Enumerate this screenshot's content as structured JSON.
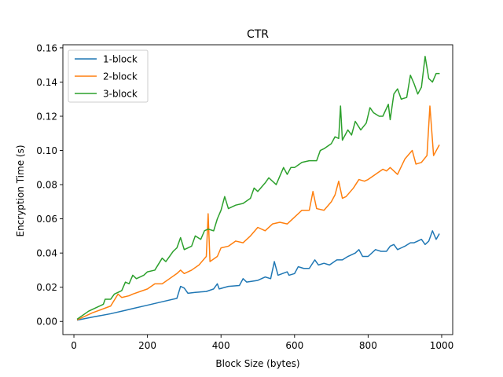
{
  "chart_data": {
    "type": "line",
    "title": "CTR",
    "xlabel": "Block Size (bytes)",
    "ylabel": "Encryption Time (s)",
    "xlim": [
      -30,
      1030
    ],
    "ylim": [
      -0.0077,
      0.1618
    ],
    "xticks": [
      0,
      200,
      400,
      600,
      800,
      1000
    ],
    "xtick_labels": [
      "0",
      "200",
      "400",
      "600",
      "800",
      "1000"
    ],
    "yticks": [
      0,
      0.02,
      0.04,
      0.06,
      0.08,
      0.1,
      0.12,
      0.14,
      0.16
    ],
    "ytick_labels": [
      "0.00",
      "0.02",
      "0.04",
      "0.06",
      "0.08",
      "0.10",
      "0.12",
      "0.14",
      "0.16"
    ],
    "grid": false,
    "legend_position": "top-left",
    "series": [
      {
        "name": "1-block",
        "color": "#1f77b4",
        "points": [
          [
            10,
            0.0008
          ],
          [
            50,
            0.0025
          ],
          [
            100,
            0.0045
          ],
          [
            140,
            0.0065
          ],
          [
            160,
            0.0075
          ],
          [
            200,
            0.0095
          ],
          [
            240,
            0.0115
          ],
          [
            280,
            0.0135
          ],
          [
            290,
            0.0205
          ],
          [
            300,
            0.0195
          ],
          [
            310,
            0.0165
          ],
          [
            330,
            0.017
          ],
          [
            360,
            0.0175
          ],
          [
            380,
            0.019
          ],
          [
            390,
            0.022
          ],
          [
            395,
            0.019
          ],
          [
            420,
            0.0205
          ],
          [
            450,
            0.021
          ],
          [
            460,
            0.025
          ],
          [
            470,
            0.023
          ],
          [
            500,
            0.024
          ],
          [
            520,
            0.026
          ],
          [
            535,
            0.025
          ],
          [
            545,
            0.035
          ],
          [
            555,
            0.027
          ],
          [
            580,
            0.029
          ],
          [
            585,
            0.027
          ],
          [
            600,
            0.028
          ],
          [
            610,
            0.032
          ],
          [
            625,
            0.031
          ],
          [
            640,
            0.031
          ],
          [
            655,
            0.036
          ],
          [
            665,
            0.033
          ],
          [
            680,
            0.034
          ],
          [
            695,
            0.033
          ],
          [
            715,
            0.036
          ],
          [
            730,
            0.036
          ],
          [
            745,
            0.038
          ],
          [
            765,
            0.04
          ],
          [
            775,
            0.042
          ],
          [
            785,
            0.038
          ],
          [
            800,
            0.038
          ],
          [
            820,
            0.042
          ],
          [
            835,
            0.041
          ],
          [
            850,
            0.041
          ],
          [
            860,
            0.044
          ],
          [
            870,
            0.045
          ],
          [
            880,
            0.042
          ],
          [
            890,
            0.043
          ],
          [
            900,
            0.044
          ],
          [
            915,
            0.046
          ],
          [
            925,
            0.046
          ],
          [
            935,
            0.047
          ],
          [
            945,
            0.048
          ],
          [
            955,
            0.045
          ],
          [
            965,
            0.047
          ],
          [
            975,
            0.053
          ],
          [
            985,
            0.048
          ],
          [
            993,
            0.051
          ]
        ]
      },
      {
        "name": "2-block",
        "color": "#ff7f0e",
        "points": [
          [
            10,
            0.001
          ],
          [
            50,
            0.005
          ],
          [
            100,
            0.009
          ],
          [
            120,
            0.016
          ],
          [
            130,
            0.014
          ],
          [
            150,
            0.015
          ],
          [
            160,
            0.016
          ],
          [
            200,
            0.019
          ],
          [
            220,
            0.022
          ],
          [
            240,
            0.022
          ],
          [
            260,
            0.025
          ],
          [
            280,
            0.028
          ],
          [
            290,
            0.03
          ],
          [
            300,
            0.028
          ],
          [
            320,
            0.03
          ],
          [
            340,
            0.033
          ],
          [
            360,
            0.038
          ],
          [
            365,
            0.063
          ],
          [
            370,
            0.035
          ],
          [
            390,
            0.038
          ],
          [
            400,
            0.043
          ],
          [
            420,
            0.044
          ],
          [
            440,
            0.047
          ],
          [
            460,
            0.046
          ],
          [
            480,
            0.05
          ],
          [
            500,
            0.055
          ],
          [
            520,
            0.053
          ],
          [
            540,
            0.057
          ],
          [
            560,
            0.058
          ],
          [
            580,
            0.057
          ],
          [
            600,
            0.061
          ],
          [
            620,
            0.065
          ],
          [
            640,
            0.065
          ],
          [
            650,
            0.076
          ],
          [
            660,
            0.066
          ],
          [
            680,
            0.065
          ],
          [
            700,
            0.07
          ],
          [
            710,
            0.074
          ],
          [
            720,
            0.082
          ],
          [
            730,
            0.072
          ],
          [
            740,
            0.073
          ],
          [
            760,
            0.078
          ],
          [
            775,
            0.083
          ],
          [
            790,
            0.082
          ],
          [
            800,
            0.083
          ],
          [
            820,
            0.086
          ],
          [
            840,
            0.089
          ],
          [
            850,
            0.088
          ],
          [
            860,
            0.09
          ],
          [
            880,
            0.086
          ],
          [
            900,
            0.095
          ],
          [
            920,
            0.1
          ],
          [
            930,
            0.092
          ],
          [
            945,
            0.093
          ],
          [
            960,
            0.097
          ],
          [
            968,
            0.126
          ],
          [
            978,
            0.097
          ],
          [
            993,
            0.103
          ]
        ]
      },
      {
        "name": "3-block",
        "color": "#2ca02c",
        "points": [
          [
            10,
            0.0015
          ],
          [
            40,
            0.006
          ],
          [
            60,
            0.008
          ],
          [
            80,
            0.01
          ],
          [
            85,
            0.013
          ],
          [
            100,
            0.013
          ],
          [
            110,
            0.016
          ],
          [
            130,
            0.018
          ],
          [
            140,
            0.023
          ],
          [
            150,
            0.022
          ],
          [
            160,
            0.027
          ],
          [
            170,
            0.025
          ],
          [
            190,
            0.027
          ],
          [
            200,
            0.029
          ],
          [
            220,
            0.03
          ],
          [
            240,
            0.037
          ],
          [
            250,
            0.035
          ],
          [
            270,
            0.041
          ],
          [
            280,
            0.043
          ],
          [
            290,
            0.049
          ],
          [
            300,
            0.042
          ],
          [
            320,
            0.044
          ],
          [
            330,
            0.05
          ],
          [
            345,
            0.048
          ],
          [
            355,
            0.053
          ],
          [
            365,
            0.054
          ],
          [
            380,
            0.053
          ],
          [
            390,
            0.06
          ],
          [
            400,
            0.065
          ],
          [
            410,
            0.073
          ],
          [
            420,
            0.066
          ],
          [
            440,
            0.068
          ],
          [
            460,
            0.069
          ],
          [
            480,
            0.072
          ],
          [
            490,
            0.078
          ],
          [
            500,
            0.076
          ],
          [
            520,
            0.081
          ],
          [
            530,
            0.084
          ],
          [
            550,
            0.08
          ],
          [
            560,
            0.085
          ],
          [
            570,
            0.09
          ],
          [
            580,
            0.086
          ],
          [
            590,
            0.09
          ],
          [
            600,
            0.09
          ],
          [
            620,
            0.093
          ],
          [
            640,
            0.094
          ],
          [
            660,
            0.094
          ],
          [
            670,
            0.1
          ],
          [
            680,
            0.101
          ],
          [
            700,
            0.104
          ],
          [
            710,
            0.108
          ],
          [
            720,
            0.107
          ],
          [
            725,
            0.126
          ],
          [
            730,
            0.106
          ],
          [
            745,
            0.112
          ],
          [
            755,
            0.109
          ],
          [
            765,
            0.117
          ],
          [
            780,
            0.112
          ],
          [
            795,
            0.116
          ],
          [
            805,
            0.125
          ],
          [
            815,
            0.122
          ],
          [
            830,
            0.12
          ],
          [
            840,
            0.12
          ],
          [
            855,
            0.127
          ],
          [
            860,
            0.118
          ],
          [
            870,
            0.133
          ],
          [
            880,
            0.136
          ],
          [
            890,
            0.13
          ],
          [
            905,
            0.131
          ],
          [
            915,
            0.144
          ],
          [
            925,
            0.139
          ],
          [
            935,
            0.133
          ],
          [
            945,
            0.137
          ],
          [
            955,
            0.155
          ],
          [
            965,
            0.142
          ],
          [
            975,
            0.14
          ],
          [
            985,
            0.145
          ],
          [
            993,
            0.145
          ]
        ]
      }
    ]
  }
}
